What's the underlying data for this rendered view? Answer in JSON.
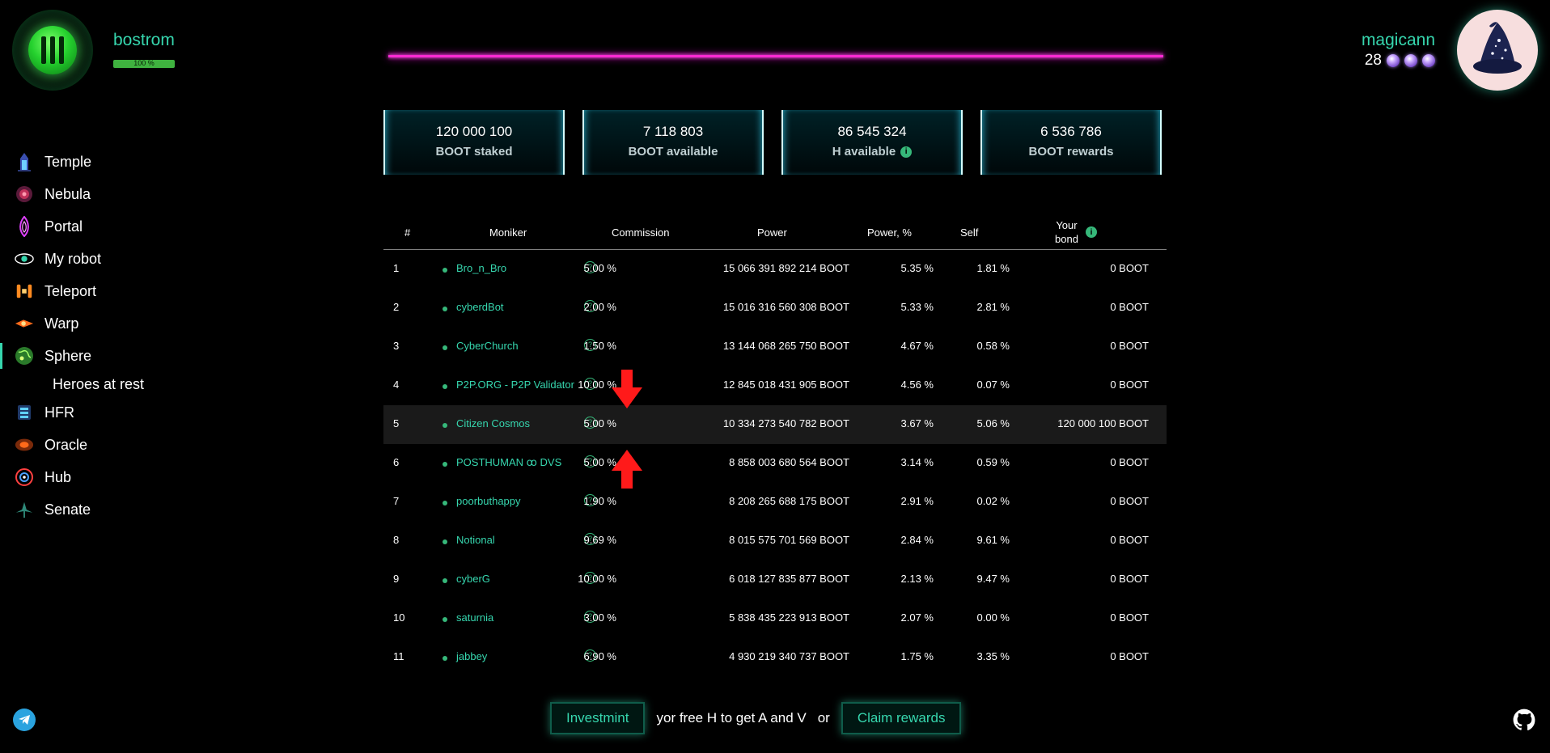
{
  "header": {
    "network": "bostrom",
    "sync_percent_text": "100 %",
    "sync_fraction": 1.0,
    "username": "magicann",
    "level": "28"
  },
  "sidebar": {
    "items": [
      {
        "label": "Temple",
        "icon": "temple-icon"
      },
      {
        "label": "Nebula",
        "icon": "nebula-icon"
      },
      {
        "label": "Portal",
        "icon": "portal-icon"
      },
      {
        "label": "My robot",
        "icon": "robot-eye-icon"
      },
      {
        "label": "Teleport",
        "icon": "teleport-icon"
      },
      {
        "label": "Warp",
        "icon": "warp-icon"
      },
      {
        "label": "Sphere",
        "icon": "sphere-icon"
      },
      {
        "label": "HFR",
        "icon": "hfr-icon"
      },
      {
        "label": "Oracle",
        "icon": "oracle-icon"
      },
      {
        "label": "Hub",
        "icon": "hub-icon"
      },
      {
        "label": "Senate",
        "icon": "senate-icon"
      }
    ],
    "active": "Sphere",
    "sub_item": "Heroes at rest"
  },
  "stats": [
    {
      "value": "120 000 100",
      "label": "BOOT staked"
    },
    {
      "value": "7 118 803",
      "label": "BOOT available"
    },
    {
      "value": "86 545 324",
      "label": "H available"
    },
    {
      "value": "6 536 786",
      "label": "BOOT rewards"
    }
  ],
  "table": {
    "headers": {
      "num": "#",
      "moniker": "Moniker",
      "commission": "Commission",
      "power": "Power",
      "power_pct": "Power, %",
      "self": "Self",
      "your_bond_1": "Your",
      "your_bond_2": "bond"
    },
    "rows": [
      {
        "num": "1",
        "moniker": "Bro_n_Bro",
        "commission": "5.00  %",
        "power": "15 066 391 892 214  BOOT",
        "power_pct": "5.35  %",
        "self": "1.81  %",
        "bond": "0  BOOT"
      },
      {
        "num": "2",
        "moniker": "cyberdBot",
        "commission": "2.00  %",
        "power": "15 016 316 560 308  BOOT",
        "power_pct": "5.33  %",
        "self": "2.81  %",
        "bond": "0  BOOT"
      },
      {
        "num": "3",
        "moniker": "CyberChurch",
        "commission": "1.50  %",
        "power": "13 144 068 265 750  BOOT",
        "power_pct": "4.67  %",
        "self": "0.58  %",
        "bond": "0  BOOT"
      },
      {
        "num": "4",
        "moniker": "P2P.ORG - P2P Validator",
        "commission": "10.00  %",
        "power": "12 845 018 431 905  BOOT",
        "power_pct": "4.56  %",
        "self": "0.07  %",
        "bond": "0  BOOT"
      },
      {
        "num": "5",
        "moniker": "Citizen Cosmos",
        "commission": "5.00  %",
        "power": "10 334 273 540 782  BOOT",
        "power_pct": "3.67  %",
        "self": "5.06  %",
        "bond": "120 000 100  BOOT"
      },
      {
        "num": "6",
        "moniker": "POSTHUMAN ꝏ DVS",
        "commission": "5.00  %",
        "power": "8 858 003 680 564  BOOT",
        "power_pct": "3.14  %",
        "self": "0.59  %",
        "bond": "0  BOOT"
      },
      {
        "num": "7",
        "moniker": "poorbuthappy",
        "commission": "1.90  %",
        "power": "8 208 265 688 175  BOOT",
        "power_pct": "2.91  %",
        "self": "0.02  %",
        "bond": "0  BOOT"
      },
      {
        "num": "8",
        "moniker": "Notional",
        "commission": "9.69  %",
        "power": "8 015 575 701 569  BOOT",
        "power_pct": "2.84  %",
        "self": "9.61  %",
        "bond": "0  BOOT"
      },
      {
        "num": "9",
        "moniker": "cyberG",
        "commission": "10.00  %",
        "power": "6 018 127 835 877  BOOT",
        "power_pct": "2.13  %",
        "self": "9.47  %",
        "bond": "0  BOOT"
      },
      {
        "num": "10",
        "moniker": "saturnia",
        "commission": "3.00  %",
        "power": "5 838 435 223 913  BOOT",
        "power_pct": "2.07  %",
        "self": "0.00  %",
        "bond": "0  BOOT"
      },
      {
        "num": "11",
        "moniker": "jabbey",
        "commission": "6.90  %",
        "power": "4 930 219 340 737  BOOT",
        "power_pct": "1.75  %",
        "self": "3.35  %",
        "bond": "0  BOOT"
      }
    ],
    "highlighted_row": 5
  },
  "footer": {
    "investmint": "Investmint",
    "middle_text": "yor free H to get A and V",
    "or": "or",
    "claim": "Claim rewards"
  },
  "colors": {
    "accent": "#36d6ae",
    "neon_line": "#ff2ad4",
    "arrow": "#ff1a1a"
  }
}
